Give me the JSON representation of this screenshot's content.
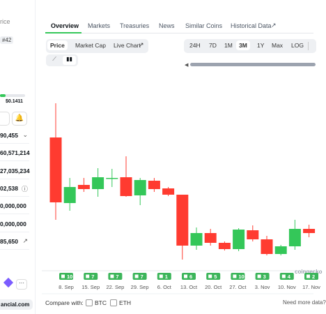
{
  "sidebar": {
    "title_fragment": "rice",
    "rank": "#42",
    "price_low": "$0.1411",
    "stats": [
      "90,455",
      "60,571,214",
      "27,035,234",
      "02,538",
      "0,000,000",
      "0,000,000",
      "85,650"
    ],
    "site": "ancial.com"
  },
  "tabs": [
    "Overview",
    "Markets",
    "Treasuries",
    "News",
    "Similar Coins",
    "Historical Data"
  ],
  "chart_tabs": [
    "Price",
    "Market Cap",
    "Live Chart"
  ],
  "ranges": [
    "24H",
    "7D",
    "1M",
    "3M",
    "1Y",
    "Max",
    "LOG"
  ],
  "chart_data": {
    "type": "candlestick",
    "ylim": [
      0,
      270
    ],
    "candles": [
      {
        "open": 183,
        "high": 232,
        "low": 65,
        "close": 90
      },
      {
        "open": 89,
        "high": 125,
        "low": 78,
        "close": 112
      },
      {
        "open": 115,
        "high": 125,
        "low": 105,
        "close": 109
      },
      {
        "open": 109,
        "high": 139,
        "low": 98,
        "close": 126
      },
      {
        "open": 125,
        "high": 138,
        "low": 112,
        "close": 125
      },
      {
        "open": 126,
        "high": 156,
        "low": 98,
        "close": 99
      },
      {
        "open": 100,
        "high": 125,
        "low": 86,
        "close": 122
      },
      {
        "open": 121,
        "high": 125,
        "low": 105,
        "close": 109
      },
      {
        "open": 110,
        "high": 112,
        "low": 99,
        "close": 101
      },
      {
        "open": 101,
        "high": 101,
        "low": 8,
        "close": 28
      },
      {
        "open": 28,
        "high": 54,
        "low": 22,
        "close": 46
      },
      {
        "open": 46,
        "high": 52,
        "low": 28,
        "close": 32
      },
      {
        "open": 32,
        "high": 34,
        "low": 21,
        "close": 23
      },
      {
        "open": 23,
        "high": 53,
        "low": 20,
        "close": 51
      },
      {
        "open": 50,
        "high": 57,
        "low": 34,
        "close": 37
      },
      {
        "open": 37,
        "high": 42,
        "low": 14,
        "close": 16
      },
      {
        "open": 16,
        "high": 29,
        "low": 14,
        "close": 27
      },
      {
        "open": 27,
        "high": 65,
        "low": 22,
        "close": 52
      },
      {
        "open": 52,
        "high": 58,
        "low": 40,
        "close": 46
      }
    ],
    "up_color": "#34c759",
    "down_color": "#ff3b30",
    "x_labels": [
      "8. Sep",
      "15. Sep",
      "22. Sep",
      "29. Sep",
      "6. Oct",
      "13. Oct",
      "20. Oct",
      "27. Oct",
      "3. Nov",
      "10. Nov",
      "17. Nov"
    ],
    "events": [
      10,
      7,
      7,
      7,
      1,
      6,
      5,
      10,
      3,
      4,
      2
    ],
    "watermark": "coingecko"
  },
  "compare": {
    "label": "Compare with:",
    "options": [
      "BTC",
      "ETH"
    ],
    "note": "Need more data?"
  }
}
